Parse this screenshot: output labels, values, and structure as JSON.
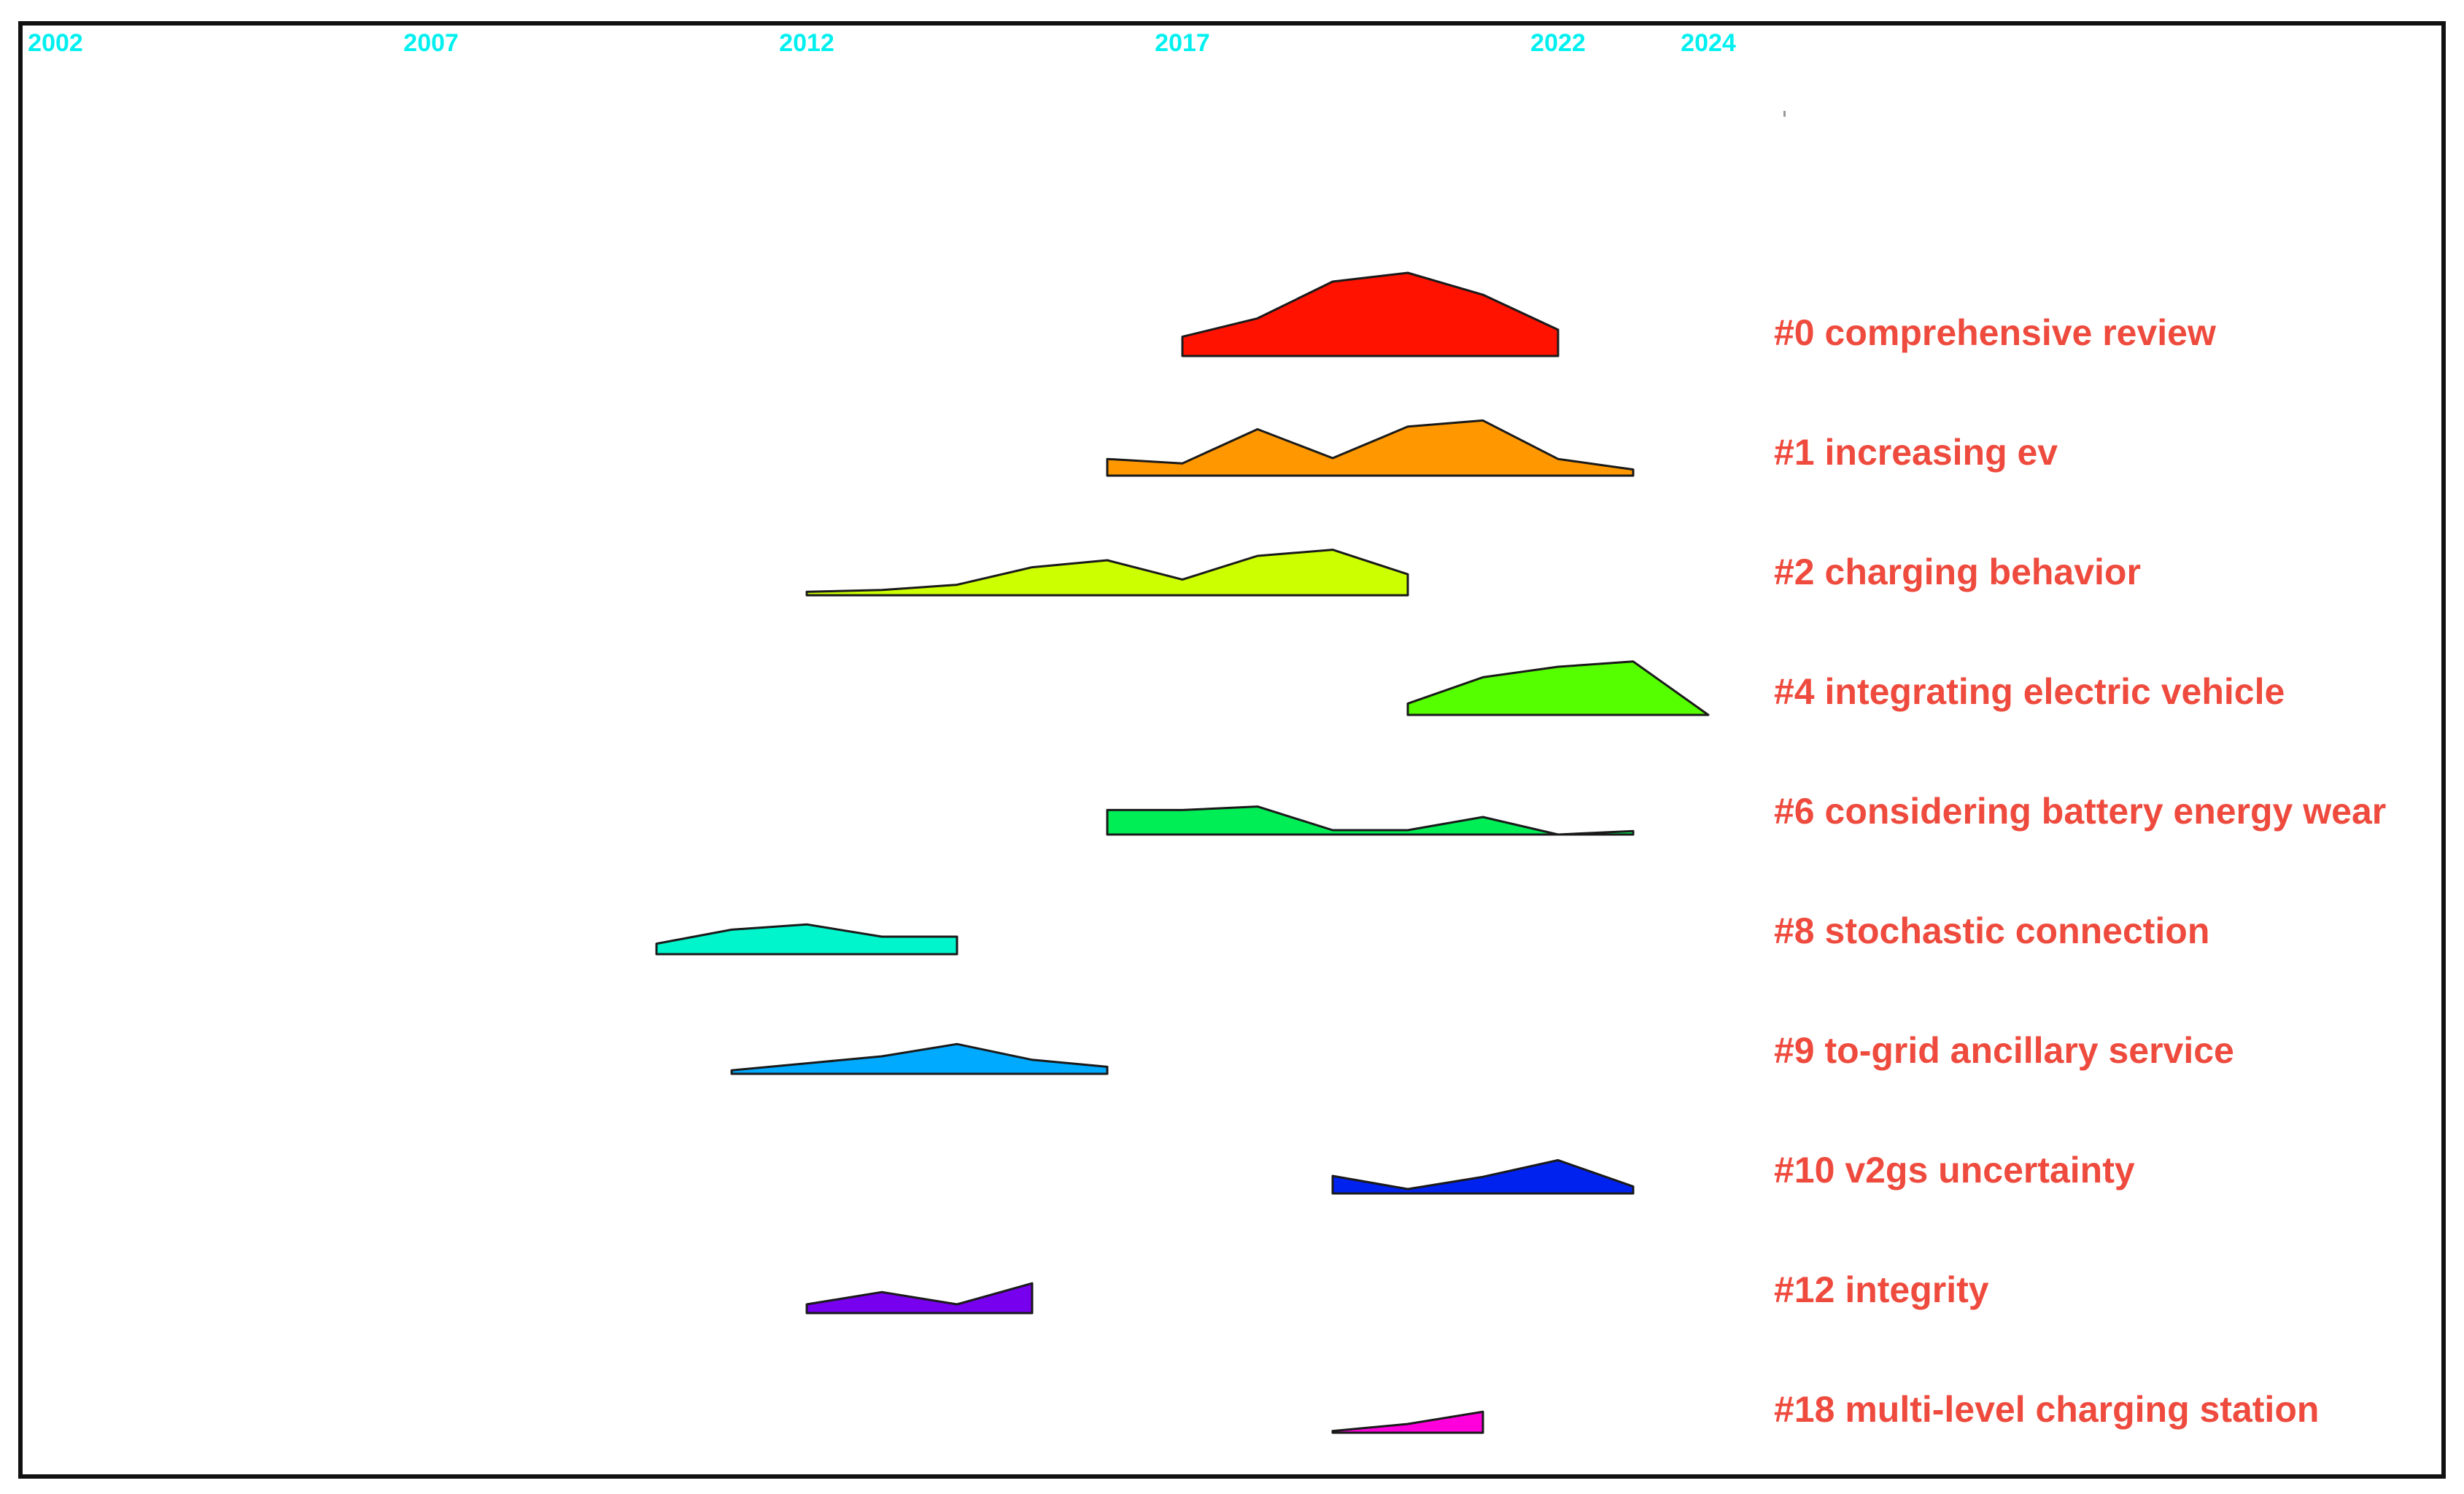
{
  "chart_data": {
    "type": "area",
    "title": "",
    "xlabel": "",
    "ylabel": "",
    "x_range": [
      2002,
      2024
    ],
    "x_ticks": [
      "2002",
      "2007",
      "2012",
      "2017",
      "2022",
      "2024"
    ],
    "colors": {
      "tick_label": "#00f0f0",
      "cluster_label": "#ee4b3e",
      "outline": "#1a1a1a",
      "frame": "#111111"
    },
    "series": [
      {
        "name": "#0 comprehensive review",
        "color": "#ff1200",
        "x": [
          2017,
          2018,
          2019,
          2020,
          2021,
          2022
        ],
        "values": [
          0.22,
          0.43,
          0.85,
          0.95,
          0.7,
          0.3
        ]
      },
      {
        "name": "#1 increasing ev",
        "color": "#ff9800",
        "x": [
          2016,
          2017,
          2018,
          2019,
          2020,
          2021,
          2022,
          2023
        ],
        "values": [
          0.19,
          0.14,
          0.53,
          0.2,
          0.56,
          0.63,
          0.19,
          0.07
        ]
      },
      {
        "name": "#2 charging behavior",
        "color": "#ccff00",
        "x": [
          2012,
          2013,
          2014,
          2015,
          2016,
          2017,
          2018,
          2019,
          2020
        ],
        "values": [
          0.04,
          0.06,
          0.12,
          0.32,
          0.4,
          0.18,
          0.45,
          0.52,
          0.24
        ]
      },
      {
        "name": "#4 integrating electric vehicle",
        "color": "#55ff00",
        "x": [
          2020,
          2021,
          2022,
          2023,
          2024
        ],
        "values": [
          0.13,
          0.43,
          0.55,
          0.61,
          0.0
        ]
      },
      {
        "name": "#6 considering battery energy wear",
        "color": "#00ee55",
        "x": [
          2016,
          2017,
          2018,
          2019,
          2020,
          2021,
          2022,
          2023
        ],
        "values": [
          0.28,
          0.28,
          0.32,
          0.05,
          0.05,
          0.2,
          0.0,
          0.04
        ]
      },
      {
        "name": "#8 stochastic connection",
        "color": "#00f5cc",
        "x": [
          2010,
          2011,
          2012,
          2013,
          2014
        ],
        "values": [
          0.12,
          0.28,
          0.34,
          0.2,
          0.2
        ]
      },
      {
        "name": "#9 to-grid ancillary service",
        "color": "#00aaff",
        "x": [
          2011,
          2012,
          2013,
          2014,
          2015,
          2016
        ],
        "values": [
          0.04,
          0.12,
          0.2,
          0.34,
          0.16,
          0.08
        ]
      },
      {
        "name": "#10 v2gs uncertainty",
        "color": "#0022ee",
        "x": [
          2019,
          2020,
          2021,
          2022,
          2023
        ],
        "values": [
          0.2,
          0.05,
          0.19,
          0.38,
          0.08
        ]
      },
      {
        "name": "#12 integrity",
        "color": "#7700ee",
        "x": [
          2012,
          2013,
          2014,
          2015
        ],
        "values": [
          0.1,
          0.24,
          0.1,
          0.34
        ]
      },
      {
        "name": "#18 multi-level charging station",
        "color": "#ff00dd",
        "x": [
          2019,
          2020,
          2021
        ],
        "values": [
          0.02,
          0.1,
          0.24
        ]
      }
    ]
  }
}
